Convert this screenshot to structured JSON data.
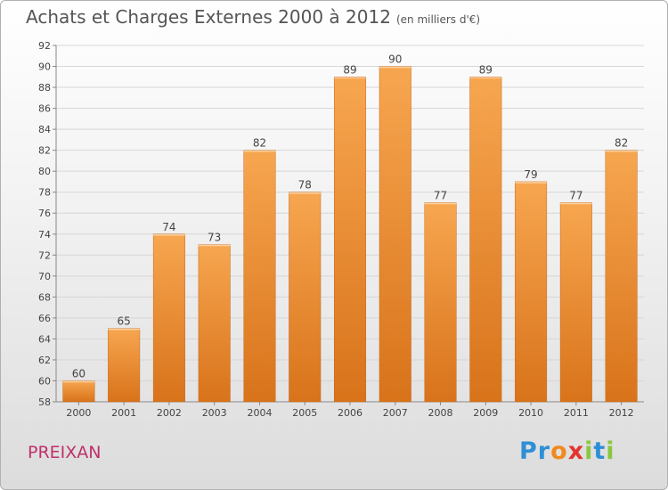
{
  "header": {
    "title": "Achats et Charges Externes 2000 à 2012",
    "subtitle": "(en milliers d'€)"
  },
  "footer": {
    "city": "PREIXAN",
    "logo_letters": [
      {
        "ch": "P",
        "color": "#2e8fd6"
      },
      {
        "ch": "r",
        "color": "#2e8fd6"
      },
      {
        "ch": "o",
        "color": "#f08a1c"
      },
      {
        "ch": "x",
        "color": "#e3342f"
      },
      {
        "ch": "i",
        "color": "#8cc63f"
      },
      {
        "ch": "t",
        "color": "#2e8fd6"
      },
      {
        "ch": "i",
        "color": "#8cc63f"
      }
    ]
  },
  "chart_data": {
    "type": "bar",
    "title": "Achats et Charges Externes 2000 à 2012",
    "subtitle": "(en milliers d'€)",
    "categories": [
      "2000",
      "2001",
      "2002",
      "2003",
      "2004",
      "2005",
      "2006",
      "2007",
      "2008",
      "2009",
      "2010",
      "2011",
      "2012"
    ],
    "values": [
      60,
      65,
      74,
      73,
      82,
      78,
      89,
      90,
      77,
      89,
      79,
      77,
      82
    ],
    "ylim": [
      58,
      92
    ],
    "yticks": [
      58,
      60,
      62,
      64,
      66,
      68,
      70,
      72,
      74,
      76,
      78,
      80,
      82,
      84,
      86,
      88,
      90,
      92
    ],
    "grid": true,
    "bar_color_top": "#f7a650",
    "bar_color_bottom": "#d8731a"
  }
}
